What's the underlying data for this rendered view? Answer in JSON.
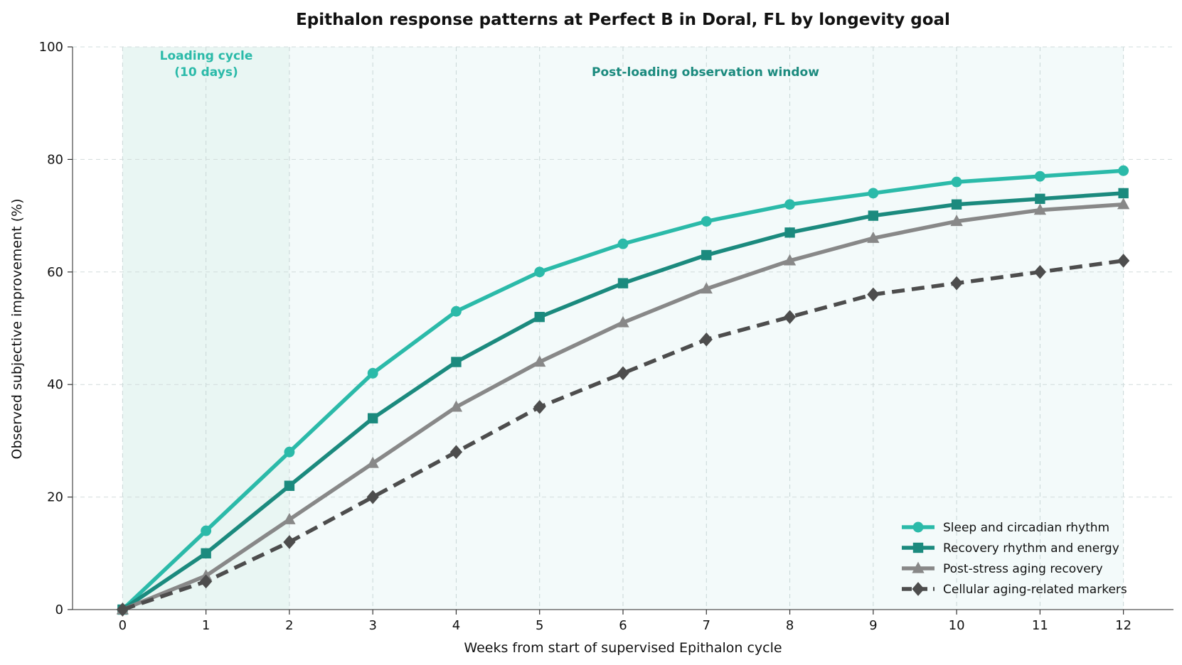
{
  "chart_data": {
    "type": "line",
    "title": "Epithalon response patterns at Perfect B in Doral, FL by longevity goal",
    "xlabel": "Weeks from start of supervised Epithalon cycle",
    "ylabel": "Observed subjective improvement (%)",
    "x": [
      0,
      1,
      2,
      3,
      4,
      5,
      6,
      7,
      8,
      9,
      10,
      11,
      12
    ],
    "xlim": [
      -0.6,
      12.6
    ],
    "ylim": [
      0,
      100
    ],
    "xticks": [
      "0",
      "1",
      "2",
      "3",
      "4",
      "5",
      "6",
      "7",
      "8",
      "9",
      "10",
      "11",
      "12"
    ],
    "yticks": [
      "0",
      "20",
      "40",
      "60",
      "80",
      "100"
    ],
    "grid": true,
    "legend_position": "lower-right",
    "series": [
      {
        "name": "Sleep and circadian rhythm",
        "color": "#2bbaa9",
        "marker": "circle",
        "dash": false,
        "values": [
          0,
          14,
          28,
          42,
          53,
          60,
          65,
          69,
          72,
          74,
          76,
          77,
          78
        ]
      },
      {
        "name": "Recovery rhythm and energy",
        "color": "#1b8a7e",
        "marker": "square",
        "dash": false,
        "values": [
          0,
          10,
          22,
          34,
          44,
          52,
          58,
          63,
          67,
          70,
          72,
          73,
          74
        ]
      },
      {
        "name": "Post-stress aging recovery",
        "color": "#888888",
        "marker": "triangle",
        "dash": false,
        "values": [
          0,
          6,
          16,
          26,
          36,
          44,
          51,
          57,
          62,
          66,
          69,
          71,
          72
        ]
      },
      {
        "name": "Cellular aging-related markers",
        "color": "#4d4d4d",
        "marker": "diamond",
        "dash": true,
        "values": [
          0,
          5,
          12,
          20,
          28,
          36,
          42,
          48,
          52,
          56,
          58,
          60,
          62
        ]
      }
    ],
    "annotations": [
      {
        "text_line1": "Loading cycle",
        "text_line2": "(10 days)",
        "color": "#2bbaa9"
      },
      {
        "text": "Post-loading observation window",
        "color": "#1b8a7e"
      }
    ],
    "shaded_regions": [
      {
        "x_start": 0,
        "x_end": 2,
        "color": "#e9f6f3"
      },
      {
        "x_start": 2,
        "x_end": 12,
        "color": "#f3fafa"
      }
    ]
  }
}
